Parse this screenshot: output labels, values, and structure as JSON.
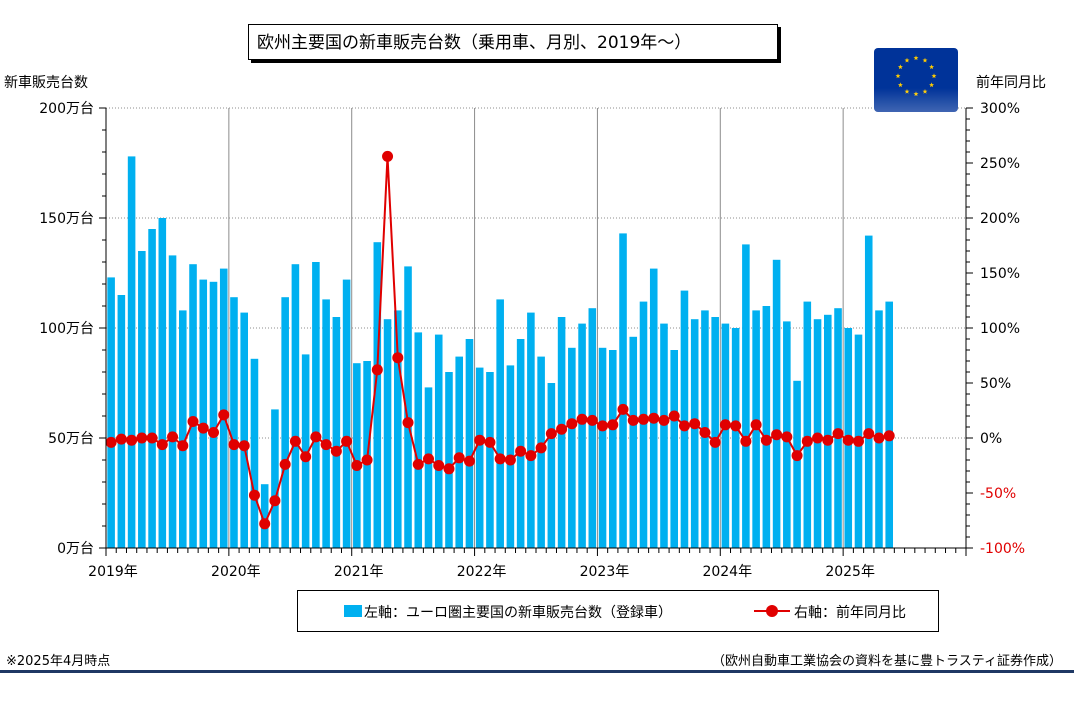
{
  "title": "欧州主要国の新車販売台数（乗用車、月別、2019年～）",
  "left_axis_title": "新車販売台数",
  "right_axis_title": "前年同月比",
  "legend": {
    "bar_label": "左軸：ユーロ圏主要国の新車販売台数（登録車）",
    "line_label": "右軸：前年同月比"
  },
  "note_left": "※2025年4月時点",
  "note_right": "（欧州自動車工業協会の資料を基に豊トラスティ証券作成）",
  "colors": {
    "bar": "#00b0f0",
    "line": "#e00000",
    "flag_blue": "#003399",
    "flag_star": "#ffcc00"
  },
  "icons": {
    "flag": "eu-flag-icon"
  },
  "chart_data": {
    "type": "bar",
    "title": "欧州主要国の新車販売台数（乗用車、月別、2019年～）",
    "x_labels": [
      "2019年",
      "2020年",
      "2021年",
      "2022年",
      "2023年",
      "2024年",
      "2025年"
    ],
    "start": "2019-01",
    "months_shown": 84,
    "left_axis": {
      "label": "新車販売台数",
      "ticks": [
        "0万台",
        "50万台",
        "100万台",
        "150万台",
        "200万台"
      ],
      "ylim": [
        0,
        200
      ]
    },
    "right_axis": {
      "label": "前年同月比",
      "ticks": [
        "-100%",
        "-50%",
        "0%",
        "50%",
        "100%",
        "150%",
        "200%",
        "250%",
        "300%"
      ],
      "ylim": [
        -100,
        300
      ]
    },
    "grid": true,
    "series": [
      {
        "name": "左軸：ユーロ圏主要国の新車販売台数（登録車）",
        "axis": "left",
        "type": "bar",
        "values": [
          123,
          115,
          178,
          135,
          145,
          150,
          133,
          108,
          129,
          122,
          121,
          127,
          114,
          107,
          86,
          29,
          63,
          114,
          129,
          88,
          130,
          113,
          105,
          122,
          84,
          85,
          139,
          104,
          108,
          128,
          98,
          73,
          97,
          80,
          87,
          95,
          82,
          80,
          113,
          83,
          95,
          107,
          87,
          75,
          105,
          91,
          102,
          109,
          91,
          90,
          143,
          96,
          112,
          127,
          102,
          90,
          117,
          104,
          108,
          105,
          102,
          100,
          138,
          108,
          110,
          131,
          103,
          76,
          112,
          104,
          106,
          109,
          100,
          97,
          142,
          108,
          112
        ]
      },
      {
        "name": "右軸：前年同月比",
        "axis": "right",
        "type": "line",
        "values": [
          -4,
          -1,
          -2,
          0,
          0,
          -6,
          1,
          -7,
          15,
          9,
          5,
          21,
          -6,
          -7,
          -52,
          -78,
          -57,
          -24,
          -3,
          -17,
          1,
          -6,
          -12,
          -3,
          -25,
          -20,
          62,
          256,
          73,
          14,
          -24,
          -19,
          -25,
          -28,
          -18,
          -21,
          -2,
          -4,
          -19,
          -20,
          -12,
          -16,
          -9,
          4,
          8,
          13,
          17,
          16,
          11,
          12,
          26,
          16,
          17,
          18,
          16,
          20,
          11,
          13,
          5,
          -4,
          12,
          11,
          -3,
          12,
          -2,
          3,
          1,
          -16,
          -3,
          0,
          -2,
          4,
          -2,
          -3,
          4,
          0,
          2
        ]
      }
    ]
  }
}
